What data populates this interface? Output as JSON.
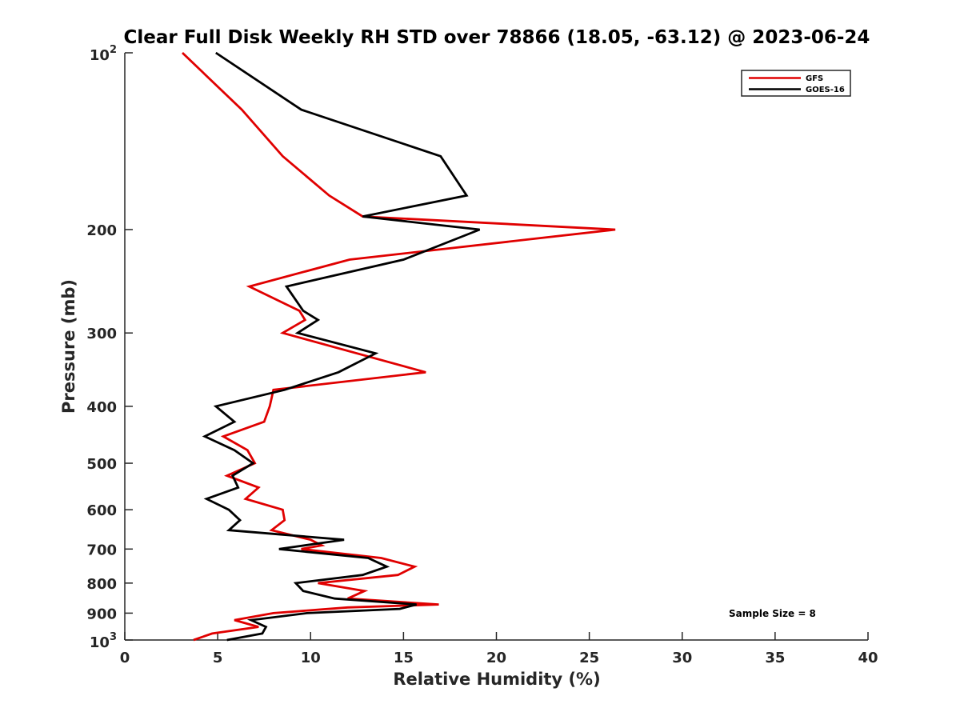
{
  "chart_data": {
    "type": "line",
    "title": "Clear Full Disk Weekly RH STD over 78866 (18.05, -63.12) @ 2023-06-24",
    "xlabel": "Relative Humidity (%)",
    "ylabel": "Pressure (mb)",
    "xlim": [
      0,
      40
    ],
    "ylim": [
      100,
      1000
    ],
    "y_scale": "log",
    "y_inverted": true,
    "grid": false,
    "legend_position": "top-right",
    "x_ticks": [
      0,
      5,
      10,
      15,
      20,
      25,
      30,
      35,
      40
    ],
    "x_tick_labels": [
      "0",
      "5",
      "10",
      "15",
      "20",
      "25",
      "30",
      "35",
      "40"
    ],
    "y_ticks": [
      200,
      300,
      400,
      500,
      600,
      700,
      800,
      900
    ],
    "y_tick_labels": [
      "200",
      "300",
      "400",
      "500",
      "600",
      "700",
      "800",
      "900"
    ],
    "y_end_labels": [
      {
        "value": 100,
        "base": "10",
        "exp": "2"
      },
      {
        "value": 1000,
        "base": "10",
        "exp": "3"
      }
    ],
    "annotation": "Sample Size = 8",
    "series": [
      {
        "name": "GFS",
        "color": "#e00000",
        "points": [
          [
            3.1,
            100
          ],
          [
            6.3,
            125
          ],
          [
            8.5,
            150
          ],
          [
            11.0,
            175
          ],
          [
            12.8,
            190
          ],
          [
            26.4,
            200
          ],
          [
            12.1,
            225
          ],
          [
            6.7,
            250
          ],
          [
            9.4,
            275
          ],
          [
            9.7,
            285
          ],
          [
            8.5,
            300
          ],
          [
            16.2,
            350
          ],
          [
            8.0,
            375
          ],
          [
            7.8,
            400
          ],
          [
            7.5,
            425
          ],
          [
            5.3,
            450
          ],
          [
            6.6,
            475
          ],
          [
            7.0,
            500
          ],
          [
            5.5,
            525
          ],
          [
            7.2,
            550
          ],
          [
            6.5,
            575
          ],
          [
            8.5,
            600
          ],
          [
            8.6,
            625
          ],
          [
            7.9,
            650
          ],
          [
            10.0,
            675
          ],
          [
            10.6,
            690
          ],
          [
            9.5,
            700
          ],
          [
            13.8,
            725
          ],
          [
            15.6,
            750
          ],
          [
            14.7,
            775
          ],
          [
            10.4,
            800
          ],
          [
            12.9,
            825
          ],
          [
            12.0,
            850
          ],
          [
            16.9,
            870
          ],
          [
            12.0,
            880
          ],
          [
            8.0,
            900
          ],
          [
            5.9,
            925
          ],
          [
            7.2,
            950
          ],
          [
            4.7,
            975
          ],
          [
            3.7,
            1000
          ]
        ]
      },
      {
        "name": "GOES-16",
        "color": "#000000",
        "points": [
          [
            4.9,
            100
          ],
          [
            9.5,
            125
          ],
          [
            17.0,
            150
          ],
          [
            18.4,
            175
          ],
          [
            12.8,
            190
          ],
          [
            19.1,
            200
          ],
          [
            15.0,
            225
          ],
          [
            8.7,
            250
          ],
          [
            9.6,
            275
          ],
          [
            10.4,
            285
          ],
          [
            9.3,
            300
          ],
          [
            13.5,
            325
          ],
          [
            11.5,
            350
          ],
          [
            8.6,
            375
          ],
          [
            4.9,
            400
          ],
          [
            5.9,
            425
          ],
          [
            4.3,
            450
          ],
          [
            5.9,
            475
          ],
          [
            6.9,
            500
          ],
          [
            5.8,
            525
          ],
          [
            6.1,
            550
          ],
          [
            4.4,
            575
          ],
          [
            5.6,
            600
          ],
          [
            6.2,
            625
          ],
          [
            5.6,
            650
          ],
          [
            11.8,
            675
          ],
          [
            8.3,
            700
          ],
          [
            13.1,
            725
          ],
          [
            14.1,
            750
          ],
          [
            12.8,
            775
          ],
          [
            9.2,
            800
          ],
          [
            9.6,
            825
          ],
          [
            11.3,
            850
          ],
          [
            15.7,
            870
          ],
          [
            14.8,
            885
          ],
          [
            9.8,
            900
          ],
          [
            6.8,
            925
          ],
          [
            7.6,
            950
          ],
          [
            7.4,
            975
          ],
          [
            5.5,
            1000
          ]
        ]
      }
    ]
  }
}
